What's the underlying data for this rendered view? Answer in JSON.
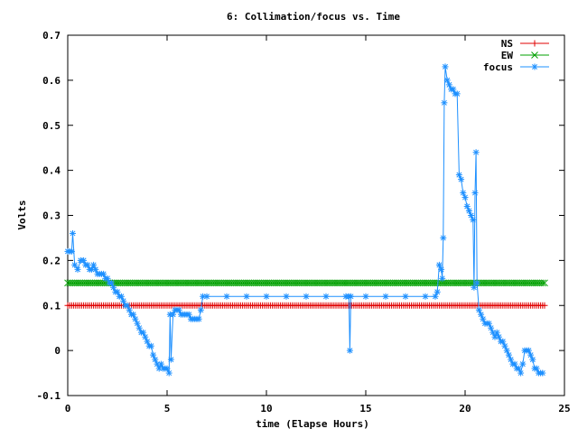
{
  "chart_data": {
    "type": "line",
    "title": "6: Collimation/focus vs. Time",
    "xlabel": "time (Elapse Hours)",
    "ylabel": "Volts",
    "xlim": [
      0,
      25
    ],
    "ylim": [
      -0.1,
      0.7
    ],
    "x_ticks": [
      0,
      5,
      10,
      15,
      20,
      25
    ],
    "y_ticks": [
      -0.1,
      0,
      0.1,
      0.2,
      0.3,
      0.4,
      0.5,
      0.6,
      0.7
    ],
    "x_tick_labels": [
      "0",
      "5",
      "10",
      "15",
      "20",
      "25"
    ],
    "y_tick_labels": [
      "-0.1",
      "0",
      "0.1",
      "0.2",
      "0.3",
      "0.4",
      "0.5",
      "0.6",
      "0.7"
    ],
    "legend_position": "top-right",
    "grid": false,
    "series": [
      {
        "name": "NS",
        "color": "#e00000",
        "marker": "plus",
        "constant": 0.1,
        "x_range": [
          0,
          24
        ],
        "point_step": 0.1
      },
      {
        "name": "EW",
        "color": "#00a000",
        "marker": "cross",
        "constant": 0.15,
        "x_range": [
          0,
          24
        ],
        "point_step": 0.1
      },
      {
        "name": "focus",
        "color": "#1e90ff",
        "marker": "star",
        "points": [
          [
            0.0,
            0.22
          ],
          [
            0.1,
            0.22
          ],
          [
            0.2,
            0.22
          ],
          [
            0.25,
            0.26
          ],
          [
            0.35,
            0.19
          ],
          [
            0.5,
            0.18
          ],
          [
            0.65,
            0.2
          ],
          [
            0.8,
            0.2
          ],
          [
            0.9,
            0.19
          ],
          [
            1.0,
            0.19
          ],
          [
            1.1,
            0.18
          ],
          [
            1.2,
            0.18
          ],
          [
            1.3,
            0.19
          ],
          [
            1.4,
            0.18
          ],
          [
            1.5,
            0.17
          ],
          [
            1.6,
            0.17
          ],
          [
            1.7,
            0.17
          ],
          [
            1.8,
            0.17
          ],
          [
            1.9,
            0.16
          ],
          [
            2.0,
            0.16
          ],
          [
            2.1,
            0.15
          ],
          [
            2.2,
            0.15
          ],
          [
            2.3,
            0.14
          ],
          [
            2.4,
            0.13
          ],
          [
            2.5,
            0.13
          ],
          [
            2.6,
            0.12
          ],
          [
            2.7,
            0.12
          ],
          [
            2.8,
            0.11
          ],
          [
            2.9,
            0.1
          ],
          [
            3.0,
            0.1
          ],
          [
            3.1,
            0.09
          ],
          [
            3.2,
            0.08
          ],
          [
            3.3,
            0.08
          ],
          [
            3.4,
            0.07
          ],
          [
            3.5,
            0.06
          ],
          [
            3.6,
            0.05
          ],
          [
            3.7,
            0.04
          ],
          [
            3.8,
            0.04
          ],
          [
            3.9,
            0.03
          ],
          [
            4.0,
            0.02
          ],
          [
            4.1,
            0.01
          ],
          [
            4.2,
            0.01
          ],
          [
            4.3,
            -0.01
          ],
          [
            4.4,
            -0.02
          ],
          [
            4.5,
            -0.03
          ],
          [
            4.6,
            -0.04
          ],
          [
            4.7,
            -0.03
          ],
          [
            4.8,
            -0.04
          ],
          [
            4.9,
            -0.04
          ],
          [
            5.0,
            -0.04
          ],
          [
            5.1,
            -0.05
          ],
          [
            5.15,
            0.08
          ],
          [
            5.2,
            -0.02
          ],
          [
            5.3,
            0.08
          ],
          [
            5.4,
            0.09
          ],
          [
            5.5,
            0.09
          ],
          [
            5.6,
            0.09
          ],
          [
            5.7,
            0.08
          ],
          [
            5.8,
            0.08
          ],
          [
            5.9,
            0.08
          ],
          [
            6.0,
            0.08
          ],
          [
            6.1,
            0.08
          ],
          [
            6.2,
            0.07
          ],
          [
            6.3,
            0.07
          ],
          [
            6.4,
            0.07
          ],
          [
            6.5,
            0.07
          ],
          [
            6.6,
            0.07
          ],
          [
            6.7,
            0.09
          ],
          [
            6.8,
            0.12
          ],
          [
            7.0,
            0.12
          ],
          [
            8.0,
            0.12
          ],
          [
            9.0,
            0.12
          ],
          [
            10.0,
            0.12
          ],
          [
            11.0,
            0.12
          ],
          [
            12.0,
            0.12
          ],
          [
            13.0,
            0.12
          ],
          [
            14.0,
            0.12
          ],
          [
            14.15,
            0.12
          ],
          [
            14.2,
            0.0
          ],
          [
            14.25,
            0.12
          ],
          [
            15.0,
            0.12
          ],
          [
            16.0,
            0.12
          ],
          [
            17.0,
            0.12
          ],
          [
            18.0,
            0.12
          ],
          [
            18.5,
            0.12
          ],
          [
            18.6,
            0.13
          ],
          [
            18.7,
            0.19
          ],
          [
            18.8,
            0.18
          ],
          [
            18.85,
            0.16
          ],
          [
            18.9,
            0.25
          ],
          [
            18.95,
            0.55
          ],
          [
            19.0,
            0.63
          ],
          [
            19.1,
            0.6
          ],
          [
            19.2,
            0.59
          ],
          [
            19.3,
            0.58
          ],
          [
            19.4,
            0.58
          ],
          [
            19.5,
            0.57
          ],
          [
            19.6,
            0.57
          ],
          [
            19.7,
            0.39
          ],
          [
            19.8,
            0.38
          ],
          [
            19.9,
            0.35
          ],
          [
            20.0,
            0.34
          ],
          [
            20.1,
            0.32
          ],
          [
            20.2,
            0.31
          ],
          [
            20.3,
            0.3
          ],
          [
            20.4,
            0.29
          ],
          [
            20.45,
            0.14
          ],
          [
            20.5,
            0.35
          ],
          [
            20.55,
            0.44
          ],
          [
            20.6,
            0.15
          ],
          [
            20.7,
            0.09
          ],
          [
            20.8,
            0.08
          ],
          [
            20.9,
            0.07
          ],
          [
            21.0,
            0.06
          ],
          [
            21.1,
            0.06
          ],
          [
            21.2,
            0.06
          ],
          [
            21.3,
            0.05
          ],
          [
            21.4,
            0.04
          ],
          [
            21.5,
            0.03
          ],
          [
            21.6,
            0.04
          ],
          [
            21.7,
            0.03
          ],
          [
            21.8,
            0.02
          ],
          [
            21.9,
            0.02
          ],
          [
            22.0,
            0.01
          ],
          [
            22.1,
            0.0
          ],
          [
            22.2,
            -0.01
          ],
          [
            22.3,
            -0.02
          ],
          [
            22.4,
            -0.03
          ],
          [
            22.5,
            -0.03
          ],
          [
            22.6,
            -0.04
          ],
          [
            22.7,
            -0.04
          ],
          [
            22.8,
            -0.05
          ],
          [
            22.9,
            -0.03
          ],
          [
            23.0,
            0.0
          ],
          [
            23.1,
            0.0
          ],
          [
            23.2,
            0.0
          ],
          [
            23.3,
            -0.01
          ],
          [
            23.4,
            -0.02
          ],
          [
            23.5,
            -0.04
          ],
          [
            23.6,
            -0.04
          ],
          [
            23.7,
            -0.05
          ],
          [
            23.8,
            -0.05
          ],
          [
            23.9,
            -0.05
          ]
        ]
      }
    ]
  }
}
